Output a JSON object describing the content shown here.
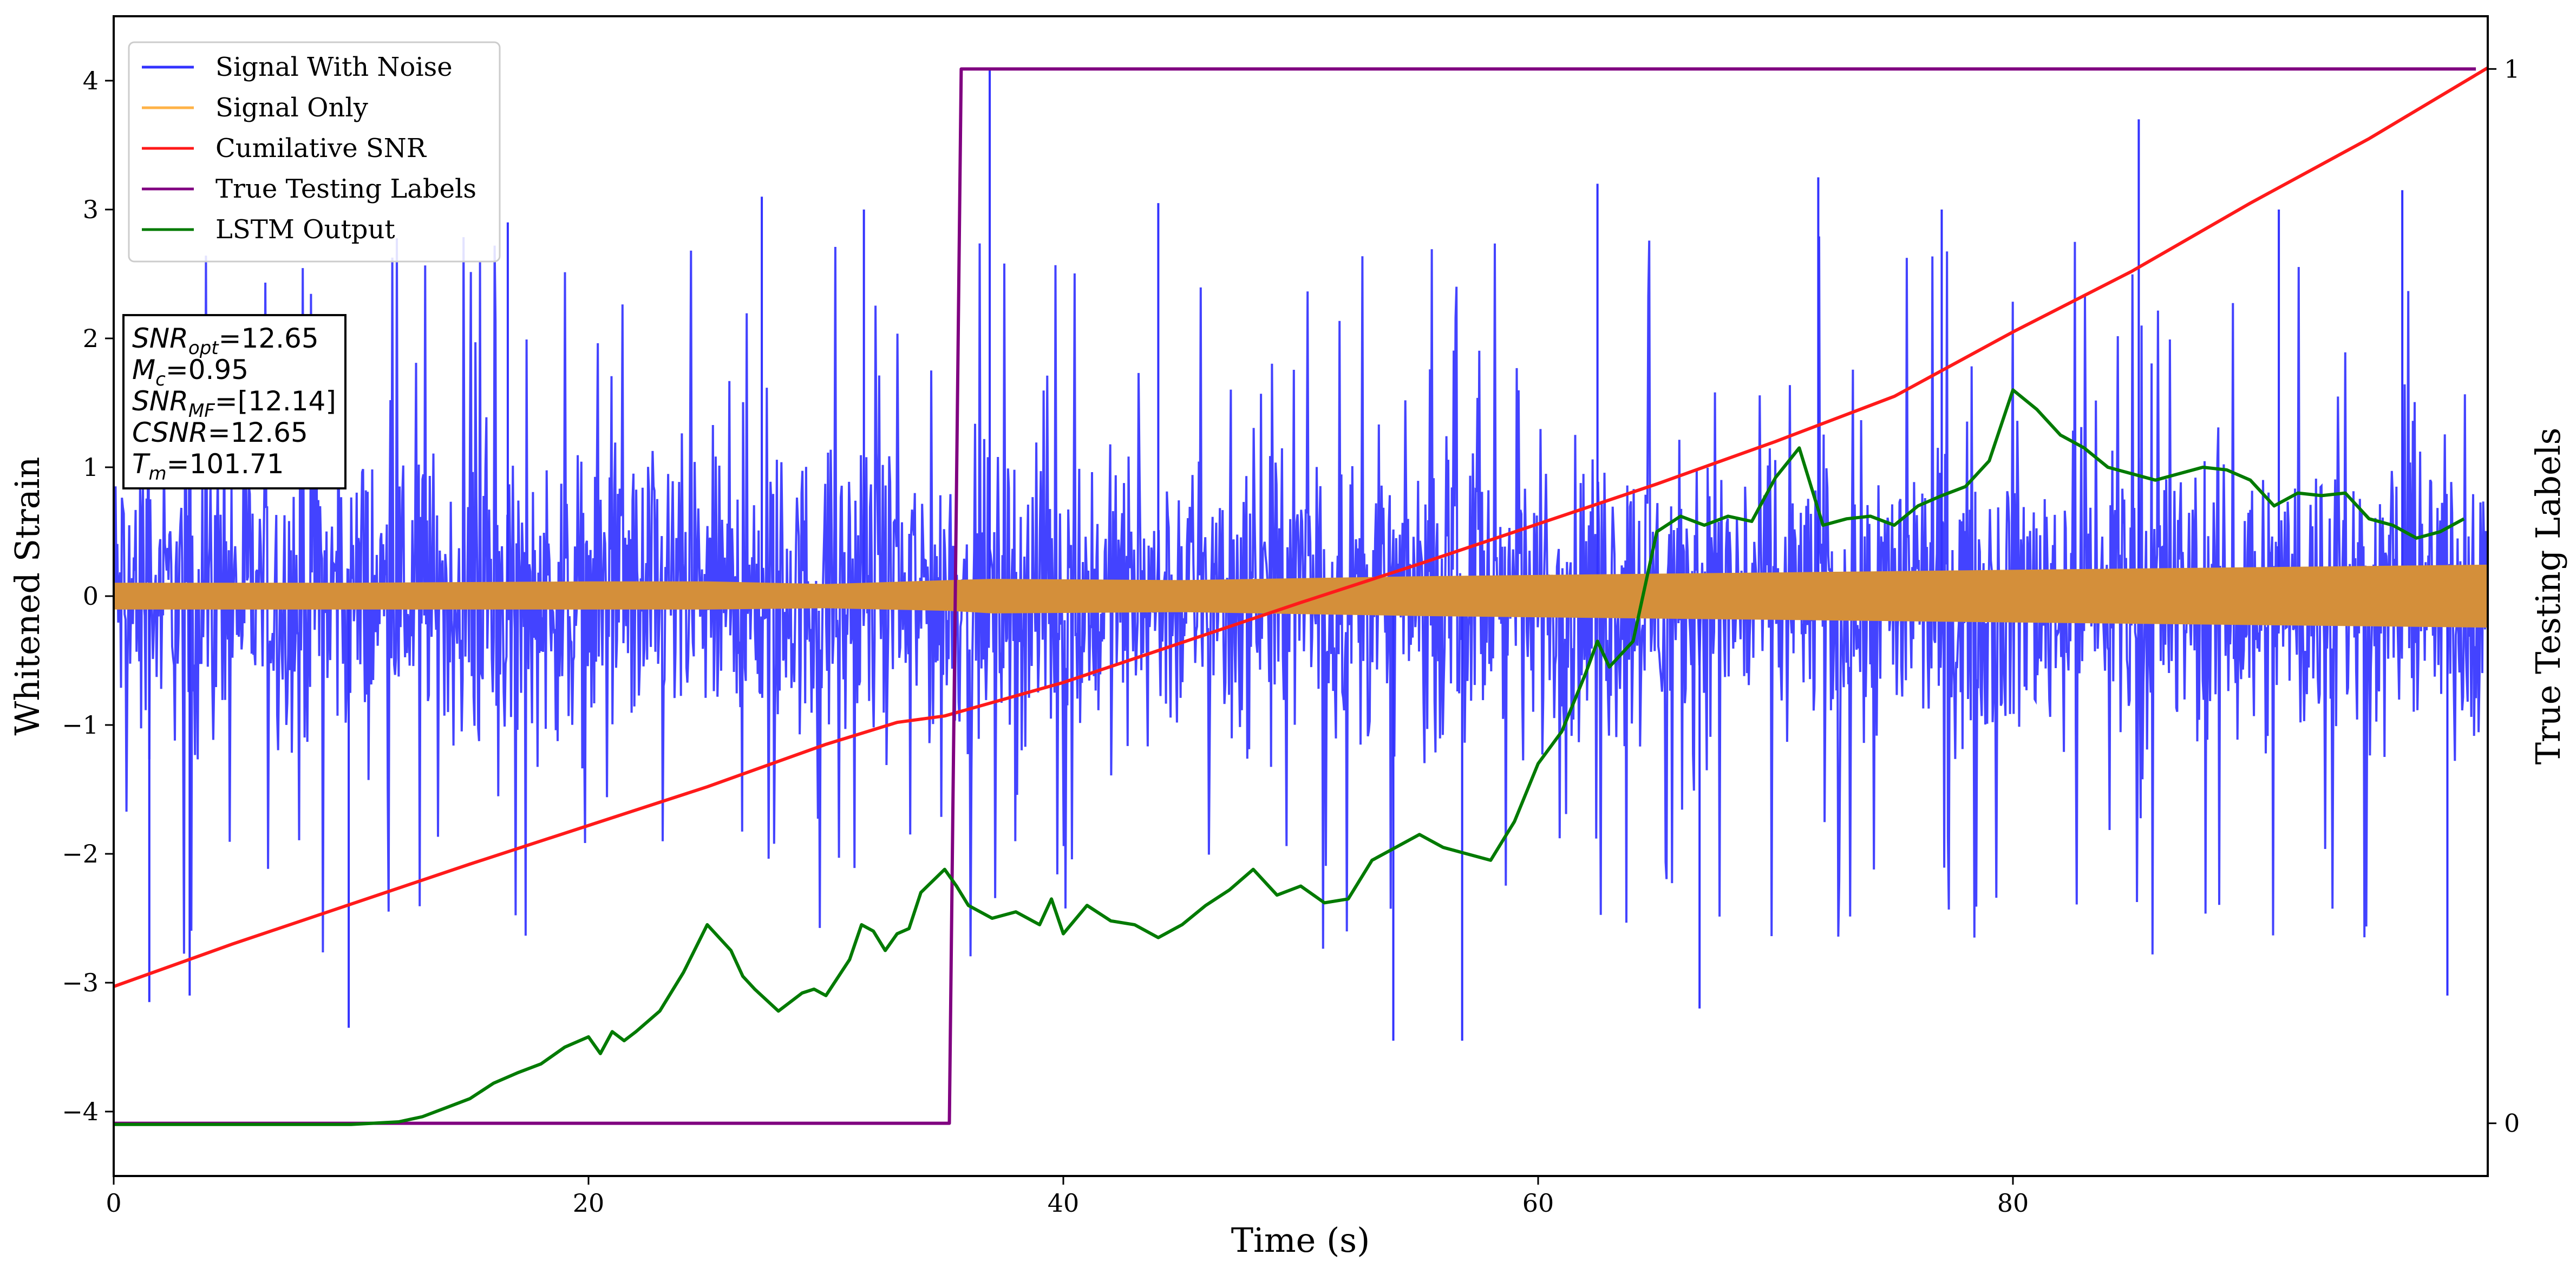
{
  "chart_data": {
    "type": "line",
    "xlabel": "Time (s)",
    "ylabel": "Whitened Strain",
    "y2label": "True Testing Labels",
    "xlim": [
      0,
      100
    ],
    "ylim": [
      -4.5,
      4.5
    ],
    "y2lim": [
      -0.05,
      1.05
    ],
    "x_ticks": [
      0,
      20,
      40,
      60,
      80
    ],
    "y_ticks": [
      -4,
      -3,
      -2,
      -1,
      0,
      1,
      2,
      3,
      4
    ],
    "y2_ticks": [
      0,
      1
    ],
    "x_tick_labels": [
      "0",
      "20",
      "40",
      "60",
      "80"
    ],
    "y_tick_labels": [
      "−4",
      "−3",
      "−2",
      "−1",
      "0",
      "1",
      "2",
      "3",
      "4"
    ],
    "y2_tick_labels": [
      "0",
      "1"
    ],
    "grid": false,
    "legend_position": "top-left",
    "colors": {
      "signal_with_noise": "#3333ff",
      "signal_only": "#d48f3a",
      "cumulative_snr": "#ff1a1a",
      "true_labels": "#800080",
      "lstm_output": "#007a00"
    },
    "legend": [
      {
        "name": "Signal With Noise",
        "color": "#3333ff"
      },
      {
        "name": "Signal Only",
        "color": "#ffb347"
      },
      {
        "name": "Cumilative SNR",
        "color": "#ff1a1a"
      },
      {
        "name": "True Testing Labels",
        "color": "#800080"
      },
      {
        "name": "LSTM Output",
        "color": "#007a00"
      }
    ],
    "series": [
      {
        "name": "Signal With Noise",
        "axis": "left",
        "style": "dense-noise",
        "x_range": [
          0,
          100
        ],
        "typical_envelope": [
          -1.6,
          1.6
        ],
        "spikes": [
          {
            "x": 36.9,
            "y": 4.1
          },
          {
            "x": 85.3,
            "y": 3.7
          },
          {
            "x": 9.9,
            "y": -3.35
          },
          {
            "x": 1.5,
            "y": -3.15
          },
          {
            "x": 3.2,
            "y": -3.1
          },
          {
            "x": 53.9,
            "y": -3.45
          },
          {
            "x": 56.8,
            "y": -3.45
          },
          {
            "x": 98.3,
            "y": -3.1
          },
          {
            "x": 66.8,
            "y": -3.2
          },
          {
            "x": 16.6,
            "y": 2.9
          },
          {
            "x": 27.3,
            "y": 3.1
          },
          {
            "x": 44.0,
            "y": 3.05
          },
          {
            "x": 62.5,
            "y": 3.2
          },
          {
            "x": 71.8,
            "y": 3.25
          },
          {
            "x": 96.4,
            "y": 3.15
          },
          {
            "x": 91.2,
            "y": 3.0
          },
          {
            "x": 77.0,
            "y": 3.0
          },
          {
            "x": 31.6,
            "y": 3.0
          }
        ]
      },
      {
        "name": "Signal Only",
        "axis": "left",
        "style": "filled-band",
        "x": [
          0,
          10,
          20,
          25,
          30,
          35.2,
          37,
          45,
          55,
          60,
          65,
          70,
          80,
          90,
          100
        ],
        "upper": [
          0.1,
          0.1,
          0.11,
          0.11,
          0.09,
          0.12,
          0.13,
          0.12,
          0.15,
          0.16,
          0.17,
          0.18,
          0.2,
          0.22,
          0.24
        ],
        "lower": [
          -0.1,
          -0.1,
          -0.1,
          -0.1,
          -0.09,
          -0.11,
          -0.13,
          -0.12,
          -0.15,
          -0.16,
          -0.17,
          -0.18,
          -0.2,
          -0.22,
          -0.24
        ]
      },
      {
        "name": "Cumilative SNR",
        "axis": "left",
        "x": [
          0,
          5,
          10,
          15,
          20,
          25,
          30,
          33,
          35,
          40,
          45,
          50,
          55,
          60,
          65,
          70,
          75,
          80,
          85,
          90,
          95,
          100
        ],
        "values": [
          -3.03,
          -2.7,
          -2.39,
          -2.08,
          -1.78,
          -1.48,
          -1.15,
          -0.98,
          -0.93,
          -0.67,
          -0.36,
          -0.05,
          0.25,
          0.56,
          0.87,
          1.2,
          1.55,
          2.05,
          2.52,
          3.05,
          3.55,
          4.1
        ]
      },
      {
        "name": "True Testing Labels",
        "axis": "right",
        "x": [
          0,
          35.2,
          35.7,
          99.5
        ],
        "values": [
          0,
          0,
          1,
          1
        ]
      },
      {
        "name": "LSTM Output",
        "axis": "left",
        "x": [
          0,
          10,
          12,
          13,
          14,
          15,
          16,
          17,
          18,
          19,
          20,
          20.5,
          21,
          21.5,
          22,
          23,
          24,
          25,
          26,
          26.5,
          27,
          28,
          29,
          29.5,
          30,
          31,
          31.5,
          32,
          32.5,
          33,
          33.5,
          34,
          35,
          35.5,
          36,
          37,
          38,
          39,
          39.5,
          40,
          41,
          42,
          43,
          44,
          45,
          46,
          47,
          48,
          49,
          50,
          51,
          52,
          53,
          54,
          55,
          56,
          57,
          58,
          59,
          60,
          61,
          62,
          62.5,
          63,
          64,
          65,
          66,
          67,
          68,
          69,
          70,
          71,
          72,
          73,
          74,
          75,
          76,
          77,
          78,
          79,
          80,
          81,
          82,
          83,
          84,
          85,
          86,
          87,
          88,
          89,
          90,
          91,
          92,
          93,
          94,
          95,
          96,
          97,
          98,
          99
        ],
        "values": [
          -4.1,
          -4.1,
          -4.08,
          -4.04,
          -3.97,
          -3.9,
          -3.78,
          -3.7,
          -3.63,
          -3.5,
          -3.42,
          -3.55,
          -3.38,
          -3.45,
          -3.38,
          -3.22,
          -2.92,
          -2.55,
          -2.75,
          -2.95,
          -3.05,
          -3.22,
          -3.08,
          -3.05,
          -3.1,
          -2.82,
          -2.55,
          -2.6,
          -2.75,
          -2.62,
          -2.58,
          -2.3,
          -2.12,
          -2.25,
          -2.4,
          -2.5,
          -2.45,
          -2.55,
          -2.35,
          -2.62,
          -2.4,
          -2.52,
          -2.55,
          -2.65,
          -2.55,
          -2.4,
          -2.28,
          -2.12,
          -2.32,
          -2.25,
          -2.38,
          -2.35,
          -2.05,
          -1.95,
          -1.85,
          -1.95,
          -2.0,
          -2.05,
          -1.75,
          -1.3,
          -1.05,
          -0.6,
          -0.35,
          -0.55,
          -0.35,
          0.5,
          0.62,
          0.55,
          0.62,
          0.58,
          0.92,
          1.15,
          0.55,
          0.6,
          0.62,
          0.55,
          0.7,
          0.78,
          0.85,
          1.05,
          1.6,
          1.45,
          1.25,
          1.15,
          1.0,
          0.95,
          0.9,
          0.95,
          1.0,
          0.98,
          0.9,
          0.7,
          0.8,
          0.78,
          0.8,
          0.6,
          0.55,
          0.45,
          0.5,
          0.6
        ]
      }
    ],
    "annotation": {
      "lines": [
        {
          "main": "SNR",
          "sub": "opt",
          "value": "=12.65"
        },
        {
          "main": "M",
          "sub": "c",
          "value": "=0.95"
        },
        {
          "main": "SNR",
          "sub": "MF",
          "value": "=[12.14]"
        },
        {
          "main": "CSNR",
          "sub": "",
          "value": "=12.65"
        },
        {
          "main": "T",
          "sub": "m",
          "value": "=101.71"
        }
      ]
    }
  }
}
